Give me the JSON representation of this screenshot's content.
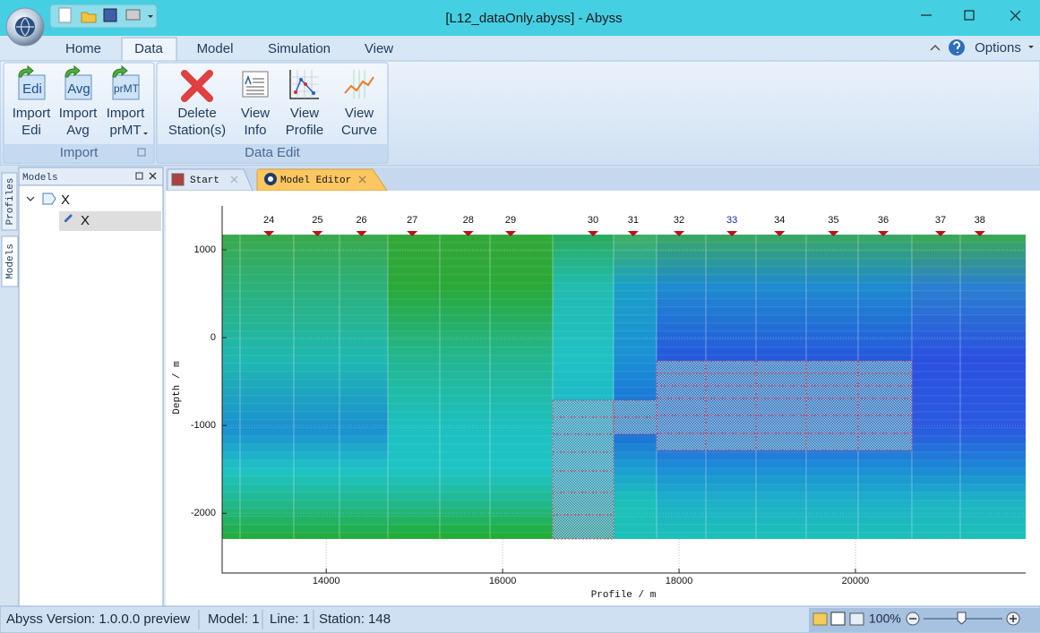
{
  "window": {
    "title": "[L12_dataOnly.abyss] - Abyss"
  },
  "ribbon": {
    "tabs": [
      "Home",
      "Data",
      "Model",
      "Simulation",
      "View"
    ],
    "active_tab": 1,
    "options": "Options",
    "groups": [
      {
        "name": "Import",
        "buttons": [
          {
            "lines": [
              "Import",
              "Edi"
            ],
            "icon": "Edi"
          },
          {
            "lines": [
              "Import",
              "Avg"
            ],
            "icon": "Avg"
          },
          {
            "lines": [
              "Import",
              "prMT"
            ],
            "icon": "prMT"
          }
        ]
      },
      {
        "name": "Data Edit",
        "buttons": [
          {
            "lines": [
              "Delete",
              "Station(s)"
            ]
          },
          {
            "lines": [
              "View",
              "Info"
            ]
          },
          {
            "lines": [
              "View",
              "Profile"
            ]
          },
          {
            "lines": [
              "View",
              "Curve"
            ]
          }
        ]
      }
    ]
  },
  "side_tabs": [
    "Profiles",
    "Models"
  ],
  "models_panel": {
    "title": "Models",
    "tree": [
      "X",
      "X"
    ]
  },
  "doc_tabs": [
    "Start",
    "Model Editor"
  ],
  "model_editor": {
    "xlabel": "Profile / m",
    "ylabel": "Depth / m",
    "xlim": [
      12820,
      21930
    ],
    "ylim": [
      -2680,
      1500
    ],
    "xticks": [
      14000,
      16000,
      18000,
      20000
    ],
    "yticks": [
      1000,
      0,
      -1000,
      -2000
    ],
    "grid": true,
    "stations": [
      {
        "label": "24",
        "x": 13350
      },
      {
        "label": "25",
        "x": 13900
      },
      {
        "label": "26",
        "x": 14400
      },
      {
        "label": "27",
        "x": 14975
      },
      {
        "label": "28",
        "x": 15610
      },
      {
        "label": "29",
        "x": 16090
      },
      {
        "label": "30",
        "x": 17025
      },
      {
        "label": "31",
        "x": 17480
      },
      {
        "label": "32",
        "x": 18000
      },
      {
        "label": "33",
        "x": 18600
      },
      {
        "label": "34",
        "x": 19140
      },
      {
        "label": "35",
        "x": 19750
      },
      {
        "label": "36",
        "x": 20315
      },
      {
        "label": "37",
        "x": 20965
      },
      {
        "label": "38",
        "x": 21410
      }
    ]
  },
  "status_bar": {
    "items": [
      "Abyss Version: 1.0.0.0 preview",
      "Model: 1",
      "Line: 1",
      "Station: 148"
    ],
    "zoom": "100%"
  }
}
